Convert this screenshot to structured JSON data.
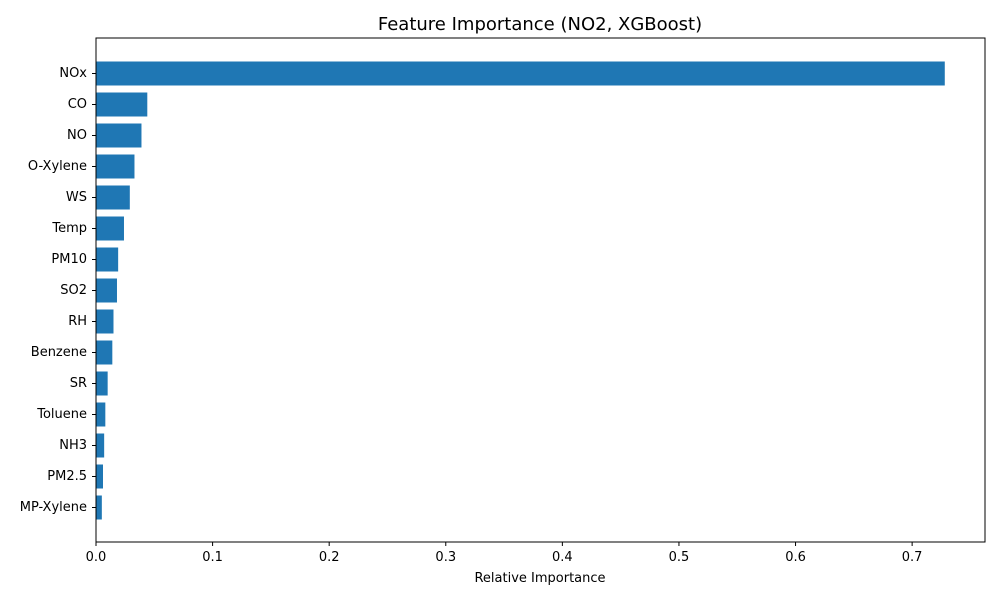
{
  "chart_data": {
    "type": "bar",
    "orientation": "horizontal",
    "title": "Feature Importance (NO2, XGBoost)",
    "xlabel": "Relative Importance",
    "ylabel": "",
    "categories": [
      "NOx",
      "CO",
      "NO",
      "O-Xylene",
      "WS",
      "Temp",
      "PM10",
      "SO2",
      "RH",
      "Benzene",
      "SR",
      "Toluene",
      "NH3",
      "PM2.5",
      "MP-Xylene"
    ],
    "values": [
      0.728,
      0.044,
      0.039,
      0.033,
      0.029,
      0.024,
      0.019,
      0.018,
      0.015,
      0.014,
      0.01,
      0.008,
      0.007,
      0.006,
      0.005
    ],
    "xlim": [
      0,
      0.7625
    ],
    "xticks": [
      "0.0",
      "0.1",
      "0.2",
      "0.3",
      "0.4",
      "0.5",
      "0.6",
      "0.7"
    ],
    "bar_color": "#1f77b4",
    "grid": false,
    "legend": "none"
  }
}
